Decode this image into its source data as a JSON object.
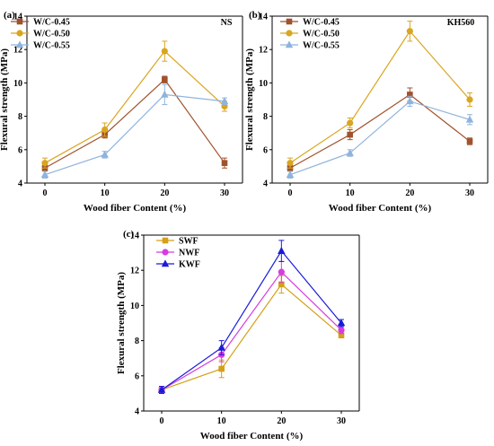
{
  "chart_data": [
    {
      "type": "line",
      "panel": "(a)",
      "annotation": "NS",
      "xlabel": "Wood fiber Content (%)",
      "ylabel": "Flexural strength (MPa)",
      "x": [
        0,
        10,
        20,
        30
      ],
      "xticks": [
        "0",
        "10",
        "20",
        "30"
      ],
      "yticks": [
        "4",
        "6",
        "8",
        "10",
        "12",
        "14"
      ],
      "ylim": [
        4,
        14
      ],
      "legend_position": "top-left",
      "series": [
        {
          "name": "W/C-0.45",
          "color": "#a0522d",
          "marker": "square",
          "values": [
            4.9,
            6.9,
            10.2,
            5.2
          ],
          "errors": [
            0.2,
            0.2,
            0.2,
            0.3
          ]
        },
        {
          "name": "W/C-0.50",
          "color": "#daa520",
          "marker": "circle",
          "values": [
            5.2,
            7.2,
            11.9,
            8.6
          ],
          "errors": [
            0.3,
            0.4,
            0.6,
            0.3
          ]
        },
        {
          "name": "W/C-0.55",
          "color": "#8fb4dc",
          "marker": "triangle",
          "values": [
            4.5,
            5.7,
            9.3,
            8.9
          ],
          "errors": [
            0.2,
            0.2,
            0.6,
            0.2
          ]
        }
      ]
    },
    {
      "type": "line",
      "panel": "(b)",
      "annotation": "KH560",
      "xlabel": "Wood fiber Content (%)",
      "ylabel": "Flexural strength (MPa)",
      "x": [
        0,
        10,
        20,
        30
      ],
      "xticks": [
        "0",
        "10",
        "20",
        "30"
      ],
      "yticks": [
        "4",
        "6",
        "8",
        "10",
        "12",
        "14"
      ],
      "ylim": [
        4,
        14
      ],
      "legend_position": "top-left",
      "series": [
        {
          "name": "W/C-0.45",
          "color": "#a0522d",
          "marker": "square",
          "values": [
            4.9,
            6.9,
            9.3,
            6.5
          ],
          "errors": [
            0.2,
            0.3,
            0.4,
            0.2
          ]
        },
        {
          "name": "W/C-0.50",
          "color": "#daa520",
          "marker": "circle",
          "values": [
            5.2,
            7.6,
            13.1,
            9.0
          ],
          "errors": [
            0.3,
            0.3,
            0.6,
            0.4
          ]
        },
        {
          "name": "W/C-0.55",
          "color": "#8fb4dc",
          "marker": "triangle",
          "values": [
            4.5,
            5.8,
            8.9,
            7.8
          ],
          "errors": [
            0.2,
            0.2,
            0.3,
            0.3
          ]
        }
      ]
    },
    {
      "type": "line",
      "panel": "(c)",
      "annotation": "",
      "xlabel": "Wood fiber Content (%)",
      "ylabel": "Flexural strength (MPa)",
      "x": [
        0,
        10,
        20,
        30
      ],
      "xticks": [
        "0",
        "10",
        "20",
        "30"
      ],
      "yticks": [
        "4",
        "6",
        "8",
        "10",
        "12",
        "14"
      ],
      "ylim": [
        4,
        14
      ],
      "legend_position": "top-left",
      "series": [
        {
          "name": "SWF",
          "color": "#d4a017",
          "marker": "square",
          "values": [
            5.2,
            6.4,
            11.2,
            8.3
          ],
          "errors": [
            0.2,
            0.5,
            0.5,
            0.1
          ]
        },
        {
          "name": "NWF",
          "color": "#d63ce0",
          "marker": "circle",
          "values": [
            5.2,
            7.2,
            11.9,
            8.6
          ],
          "errors": [
            0.2,
            0.4,
            0.6,
            0.2
          ]
        },
        {
          "name": "KWF",
          "color": "#1a1adc",
          "marker": "triangle",
          "values": [
            5.2,
            7.6,
            13.1,
            9.0
          ],
          "errors": [
            0.2,
            0.4,
            0.6,
            0.2
          ]
        }
      ]
    }
  ]
}
